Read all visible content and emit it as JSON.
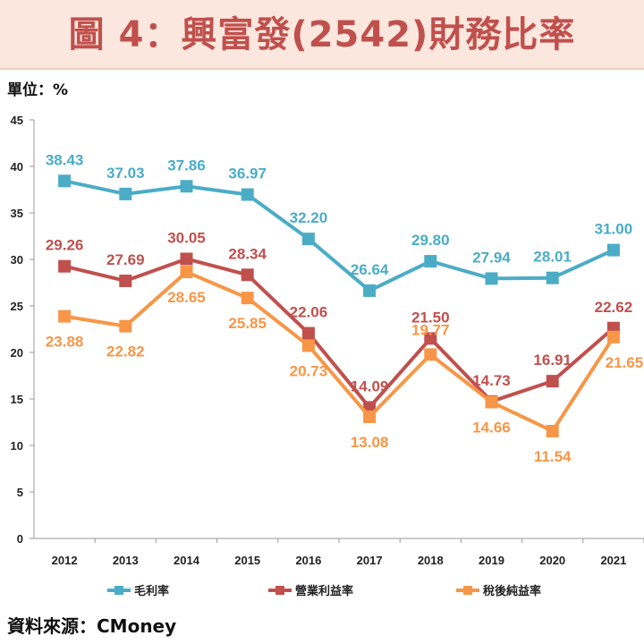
{
  "header": {
    "title": "圖 4：興富發(2542)財務比率"
  },
  "unit_label": "單位：%",
  "source": "資料來源：CMoney",
  "colors": {
    "gross": "#4bacc6",
    "operating": "#c0504d",
    "net": "#f79646"
  },
  "chart_data": {
    "type": "line",
    "categories": [
      "2012",
      "2013",
      "2014",
      "2015",
      "2016",
      "2017",
      "2018",
      "2019",
      "2020",
      "2021"
    ],
    "ylim": [
      0,
      45
    ],
    "yticks": [
      0,
      5,
      10,
      15,
      20,
      25,
      30,
      35,
      40,
      45
    ],
    "grid": false,
    "legend": "bottom",
    "series": [
      {
        "name": "毛利率",
        "values": [
          38.43,
          37.03,
          37.86,
          36.97,
          32.2,
          26.64,
          29.8,
          27.94,
          28.01,
          31.0
        ],
        "labels": [
          "38.43",
          "37.03",
          "37.86",
          "36.97",
          "32.20",
          "26.64",
          "29.80",
          "27.94",
          "28.01",
          "31.00"
        ]
      },
      {
        "name": "營業利益率",
        "values": [
          29.26,
          27.69,
          30.05,
          28.34,
          22.06,
          14.09,
          21.5,
          14.73,
          16.91,
          22.62
        ],
        "labels": [
          "29.26",
          "27.69",
          "30.05",
          "28.34",
          "22.06",
          "14.09",
          "21.50",
          "14.73",
          "16.91",
          "22.62"
        ]
      },
      {
        "name": "稅後純益率",
        "values": [
          23.88,
          22.82,
          28.65,
          25.85,
          20.73,
          13.08,
          19.77,
          14.66,
          11.54,
          21.65
        ],
        "labels": [
          "23.88",
          "22.82",
          "28.65",
          "25.85",
          "20.73",
          "13.08",
          "19.77",
          "14.66",
          "11.54",
          "21.65"
        ]
      }
    ]
  }
}
